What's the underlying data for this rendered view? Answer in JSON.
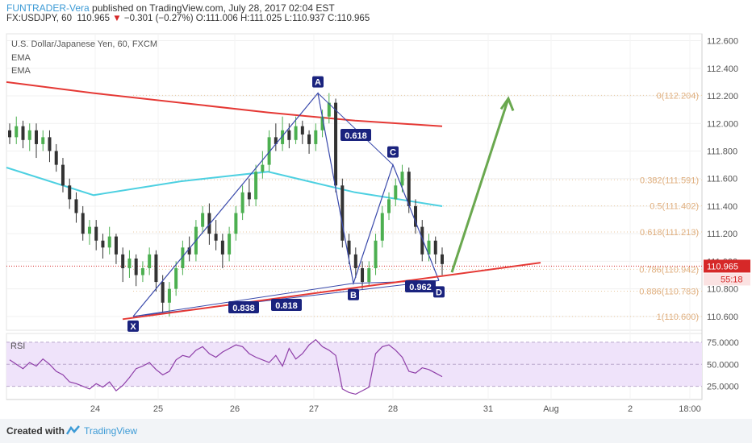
{
  "header": {
    "author": "FUNTRADER-Vera",
    "published": " published on TradingView.com, July 28, 2017 02:04 EST",
    "symbol": "FX:USDJPY, 60",
    "last": "110.965",
    "change": "−0.301 (−0.27%)",
    "ohlc": "O:111.006 H:111.025 L:110.937 C:110.965"
  },
  "footer": {
    "created_with": "Created with",
    "brand": "TradingView"
  },
  "chart_data": {
    "type": "candlestick",
    "title": "U.S. Dollar/Japanese Yen, 60, FXCM",
    "indicators": [
      "EMA",
      "EMA"
    ],
    "ylim": [
      110.5,
      112.65
    ],
    "y_ticks": [
      "112.600",
      "112.400",
      "112.200",
      "112.000",
      "111.800",
      "111.600",
      "111.400",
      "111.200",
      "111.000",
      "110.800",
      "110.600"
    ],
    "x_ticks": [
      "24",
      "25",
      "26",
      "27",
      "28",
      "31",
      "Aug",
      "2",
      "18:00"
    ],
    "current_price": "110.965",
    "countdown": "55:18",
    "candles": [
      [
        111.95,
        111.9,
        112.0,
        111.85
      ],
      [
        111.9,
        111.98,
        112.05,
        111.85
      ],
      [
        111.98,
        111.88,
        112.02,
        111.82
      ],
      [
        111.88,
        111.95,
        112.0,
        111.8
      ],
      [
        111.95,
        111.85,
        112.0,
        111.75
      ],
      [
        111.85,
        111.9,
        111.95,
        111.8
      ],
      [
        111.9,
        111.8,
        111.95,
        111.72
      ],
      [
        111.8,
        111.7,
        111.85,
        111.65
      ],
      [
        111.7,
        111.55,
        111.75,
        111.5
      ],
      [
        111.55,
        111.45,
        111.6,
        111.38
      ],
      [
        111.45,
        111.35,
        111.5,
        111.28
      ],
      [
        111.35,
        111.2,
        111.4,
        111.15
      ],
      [
        111.2,
        111.25,
        111.3,
        111.12
      ],
      [
        111.25,
        111.15,
        111.3,
        111.08
      ],
      [
        111.15,
        111.1,
        111.2,
        111.02
      ],
      [
        111.1,
        111.18,
        111.25,
        111.05
      ],
      [
        111.18,
        111.05,
        111.2,
        110.98
      ],
      [
        111.05,
        110.95,
        111.1,
        110.85
      ],
      [
        110.95,
        111.02,
        111.08,
        110.88
      ],
      [
        111.02,
        110.9,
        111.05,
        110.82
      ],
      [
        110.9,
        110.95,
        111.0,
        110.85
      ],
      [
        110.95,
        111.05,
        111.1,
        110.9
      ],
      [
        111.05,
        110.85,
        111.08,
        110.78
      ],
      [
        110.85,
        110.7,
        110.9,
        110.62
      ],
      [
        110.7,
        110.8,
        110.85,
        110.6
      ],
      [
        110.8,
        110.95,
        111.0,
        110.75
      ],
      [
        110.95,
        111.1,
        111.15,
        110.9
      ],
      [
        111.1,
        111.05,
        111.18,
        111.0
      ],
      [
        111.05,
        111.25,
        111.3,
        111.0
      ],
      [
        111.25,
        111.35,
        111.4,
        111.2
      ],
      [
        111.35,
        111.2,
        111.42,
        111.12
      ],
      [
        111.2,
        111.15,
        111.3,
        111.08
      ],
      [
        111.15,
        111.05,
        111.2,
        110.95
      ],
      [
        111.05,
        111.2,
        111.25,
        111.0
      ],
      [
        111.2,
        111.35,
        111.4,
        111.15
      ],
      [
        111.35,
        111.5,
        111.55,
        111.3
      ],
      [
        111.5,
        111.45,
        111.6,
        111.4
      ],
      [
        111.45,
        111.65,
        111.7,
        111.4
      ],
      [
        111.65,
        111.7,
        111.8,
        111.6
      ],
      [
        111.7,
        111.9,
        111.95,
        111.65
      ],
      [
        111.9,
        111.85,
        112.0,
        111.8
      ],
      [
        111.85,
        111.95,
        112.05,
        111.8
      ],
      [
        111.95,
        111.88,
        112.0,
        111.82
      ],
      [
        111.88,
        111.98,
        112.05,
        111.85
      ],
      [
        111.98,
        111.92,
        112.02,
        111.85
      ],
      [
        111.92,
        111.85,
        111.95,
        111.78
      ],
      [
        111.85,
        111.95,
        112.0,
        111.8
      ],
      [
        111.95,
        112.05,
        112.1,
        111.9
      ],
      [
        112.05,
        112.15,
        112.22,
        112.0
      ],
      [
        112.15,
        111.55,
        112.18,
        111.5
      ],
      [
        111.55,
        111.15,
        111.6,
        111.1
      ],
      [
        111.15,
        111.05,
        111.2,
        110.98
      ],
      [
        111.05,
        110.95,
        111.1,
        110.88
      ],
      [
        110.95,
        110.85,
        111.0,
        110.8
      ],
      [
        110.85,
        110.95,
        111.0,
        110.82
      ],
      [
        110.95,
        111.15,
        111.2,
        110.9
      ],
      [
        111.15,
        111.35,
        111.4,
        111.1
      ],
      [
        111.35,
        111.45,
        111.5,
        111.3
      ],
      [
        111.45,
        111.55,
        111.6,
        111.4
      ],
      [
        111.55,
        111.65,
        111.7,
        111.5
      ],
      [
        111.65,
        111.4,
        111.68,
        111.35
      ],
      [
        111.4,
        111.25,
        111.45,
        111.2
      ],
      [
        111.25,
        111.05,
        111.3,
        111.0
      ],
      [
        111.05,
        111.15,
        111.2,
        111.0
      ],
      [
        111.15,
        111.05,
        111.18,
        110.98
      ],
      [
        111.05,
        110.98,
        111.1,
        110.9
      ]
    ],
    "ema_red": [
      112.3,
      112.22,
      112.15,
      112.08,
      112.02,
      111.98
    ],
    "ema_cyan": [
      111.68,
      111.48,
      111.58,
      111.65,
      111.5,
      111.4
    ],
    "harmonic_points": [
      {
        "label": "X",
        "price": 110.6
      },
      {
        "label": "A",
        "price": 112.22
      },
      {
        "label": "B",
        "price": 110.84
      },
      {
        "label": "C",
        "price": 111.7
      },
      {
        "label": "D",
        "price": 110.86
      }
    ],
    "ratios": [
      {
        "label": "0.618"
      },
      {
        "label": "0.838"
      },
      {
        "label": "0.818"
      },
      {
        "label": "0.962"
      }
    ],
    "fib_levels": [
      {
        "label": "0(112.204)",
        "price": 112.204
      },
      {
        "label": "0.382(111.591)",
        "price": 111.591
      },
      {
        "label": "0.5(111.402)",
        "price": 111.402
      },
      {
        "label": "0.618(111.213)",
        "price": 111.213
      },
      {
        "label": "0.786(110.942)",
        "price": 110.942
      },
      {
        "label": "0.886(110.783)",
        "price": 110.783
      },
      {
        "label": "1(110.600)",
        "price": 110.6
      }
    ],
    "rsi": {
      "label": "RSI",
      "ylim": [
        10,
        85
      ],
      "ticks": [
        "75.0000",
        "50.0000",
        "25.0000"
      ],
      "values": [
        55,
        50,
        45,
        52,
        48,
        56,
        50,
        42,
        38,
        30,
        28,
        25,
        22,
        28,
        24,
        30,
        20,
        26,
        35,
        45,
        48,
        52,
        44,
        38,
        42,
        55,
        60,
        58,
        66,
        70,
        62,
        58,
        64,
        68,
        72,
        70,
        62,
        58,
        55,
        52,
        60,
        48,
        68,
        56,
        62,
        72,
        78,
        70,
        66,
        60,
        22,
        18,
        16,
        20,
        24,
        62,
        70,
        72,
        66,
        58,
        42,
        40,
        46,
        44,
        40,
        36
      ]
    }
  }
}
